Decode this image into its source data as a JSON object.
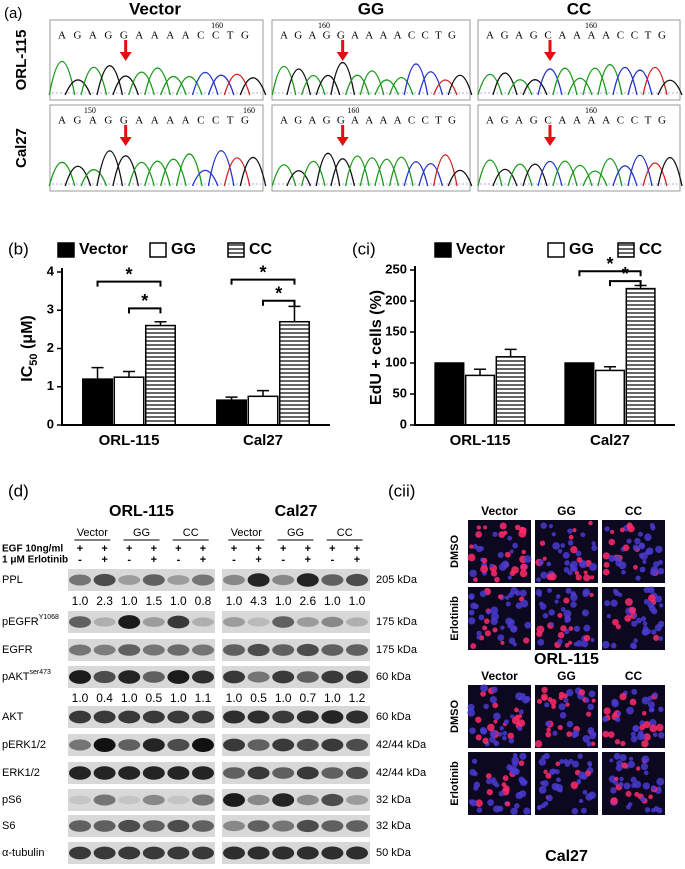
{
  "panel_a": {
    "label": "(a)",
    "columns": [
      "Vector",
      "GG",
      "CC"
    ],
    "rows": [
      "ORL-115",
      "Cal27"
    ],
    "traces": [
      [
        {
          "sequence": "AGAGGAAAACCTG",
          "positions": [
            160
          ]
        },
        {
          "sequence": "AGAGGAAAACCTG",
          "positions": [
            160
          ]
        },
        {
          "sequence": "AGAGCAAAACCTG",
          "positions": [
            160
          ]
        }
      ],
      [
        {
          "sequence": "AGAGGAAAACCTG",
          "positions": [
            150,
            160
          ]
        },
        {
          "sequence": "AGAGGAAAACCTG",
          "positions": [
            160
          ]
        },
        {
          "sequence": "AGAGCAAAACCTG",
          "positions": [
            160
          ]
        }
      ]
    ]
  },
  "chart_data": [
    {
      "type": "bar",
      "panel_label": "(b)",
      "y_label": {
        "text": "IC",
        "subscript": "50",
        "unit": " (μM)"
      },
      "categories": [
        "ORL-115",
        "Cal27"
      ],
      "series": [
        {
          "name": "Vector",
          "color": "#000000",
          "values": [
            1.2,
            0.65
          ],
          "errors": [
            0.3,
            0.08
          ]
        },
        {
          "name": "GG",
          "color": "#ffffff",
          "values": [
            1.25,
            0.75
          ],
          "errors": [
            0.15,
            0.15
          ]
        },
        {
          "name": "CC",
          "color": "#ffffff",
          "hatch": true,
          "values": [
            2.6,
            2.7
          ],
          "errors": [
            0.1,
            0.4
          ]
        }
      ],
      "ylim": [
        0,
        4
      ],
      "yticks": [
        0,
        1,
        2,
        3,
        4
      ],
      "significance": [
        "*",
        "*",
        "*",
        "*"
      ]
    },
    {
      "type": "bar",
      "panel_label": "(ci)",
      "y_label": {
        "text": "EdU + cells (%)"
      },
      "categories": [
        "ORL-115",
        "Cal27"
      ],
      "series": [
        {
          "name": "Vector",
          "color": "#000000",
          "values": [
            100,
            100
          ],
          "errors": [
            0,
            0
          ]
        },
        {
          "name": "GG",
          "color": "#ffffff",
          "values": [
            80,
            88
          ],
          "errors": [
            10,
            6
          ]
        },
        {
          "name": "CC",
          "color": "#ffffff",
          "hatch": true,
          "values": [
            110,
            220
          ],
          "errors": [
            12,
            5
          ]
        }
      ],
      "ylim": [
        0,
        250
      ],
      "yticks": [
        0,
        50,
        100,
        150,
        200,
        250
      ],
      "significance": [
        "*",
        "*"
      ]
    }
  ],
  "panel_d": {
    "label": "(d)",
    "groups": [
      "ORL-115",
      "Cal27"
    ],
    "conditions": [
      "Vector",
      "GG",
      "CC"
    ],
    "treatments": [
      {
        "label": "EGF 10ng/ml",
        "marks": [
          "+",
          "+",
          "+",
          "+",
          "+",
          "+",
          "+",
          "+",
          "+",
          "+",
          "+",
          "+"
        ]
      },
      {
        "label": "1 μM Erlotinib",
        "marks": [
          "-",
          "+",
          "-",
          "+",
          "-",
          "+",
          "-",
          "+",
          "-",
          "+",
          "-",
          "+"
        ]
      }
    ],
    "blots": [
      {
        "name": "PPL",
        "size": "205 kDa",
        "quantification": [
          "1.0",
          "2.3",
          "1.0",
          "1.5",
          "1.0",
          "0.8",
          "1.0",
          "4.3",
          "1.0",
          "2.6",
          "1.0",
          "1.0"
        ]
      },
      {
        "name": "pEGFR",
        "superscript": "Y1068",
        "size": "175 kDa"
      },
      {
        "name": "EGFR",
        "size": "175 kDa"
      },
      {
        "name": "pAKT",
        "superscript": "ser473",
        "size": "60 kDa",
        "quantification": [
          "1.0",
          "0.4",
          "1.0",
          "0.5",
          "1.0",
          "1.1",
          "1.0",
          "0.5",
          "1.0",
          "0.7",
          "1.0",
          "1.2"
        ]
      },
      {
        "name": "AKT",
        "size": "60 kDa"
      },
      {
        "name": "pERK1/2",
        "size": "42/44 kDa"
      },
      {
        "name": "ERK1/2",
        "size": "42/44 kDa"
      },
      {
        "name": "pS6",
        "size": "32 kDa"
      },
      {
        "name": "S6",
        "size": "32 kDa"
      },
      {
        "name": "α-tubulin",
        "size": "50 kDa"
      }
    ]
  },
  "panel_cii": {
    "label": "(cii)",
    "columns": [
      "Vector",
      "GG",
      "CC"
    ],
    "rows": [
      "DMSO",
      "Erlotinib"
    ],
    "cell_lines": [
      "ORL-115",
      "Cal27"
    ]
  }
}
